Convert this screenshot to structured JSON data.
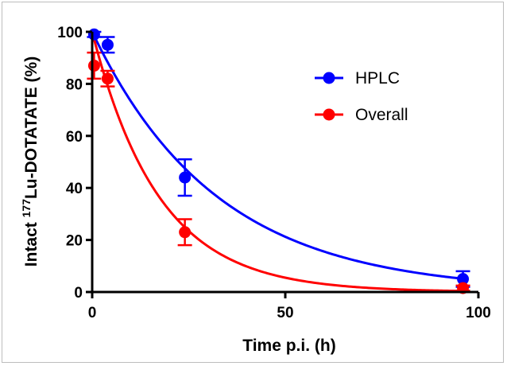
{
  "chart_data": {
    "type": "scatter",
    "title": "",
    "xlabel": "Time p.i. (h)",
    "ylabel_prefix": "Intact ",
    "ylabel_sup": "177",
    "ylabel_suffix": "Lu-DOTATATE (%)",
    "xlim": [
      0,
      100
    ],
    "ylim": [
      0,
      100
    ],
    "x_ticks": [
      0,
      50,
      100
    ],
    "y_ticks": [
      0,
      20,
      40,
      60,
      80,
      100
    ],
    "grid": false,
    "legend_position": "top-right",
    "series": [
      {
        "name": "HPLC",
        "color": "#0000ff",
        "points": [
          {
            "x": 0.5,
            "y": 99,
            "err": 1
          },
          {
            "x": 4,
            "y": 95,
            "err": 3
          },
          {
            "x": 24,
            "y": 44,
            "err": 7
          },
          {
            "x": 96,
            "y": 5,
            "err": 3
          }
        ],
        "fit": {
          "model": "exponential",
          "y0": 100,
          "k": 0.031
        }
      },
      {
        "name": "Overall",
        "color": "#ff0000",
        "points": [
          {
            "x": 0.5,
            "y": 87,
            "err": 5
          },
          {
            "x": 4,
            "y": 82,
            "err": 3
          },
          {
            "x": 24,
            "y": 23,
            "err": 5
          },
          {
            "x": 96,
            "y": 1.5,
            "err": 1
          }
        ],
        "fit": {
          "model": "exponential",
          "y0": 100,
          "k": 0.058
        }
      }
    ]
  }
}
